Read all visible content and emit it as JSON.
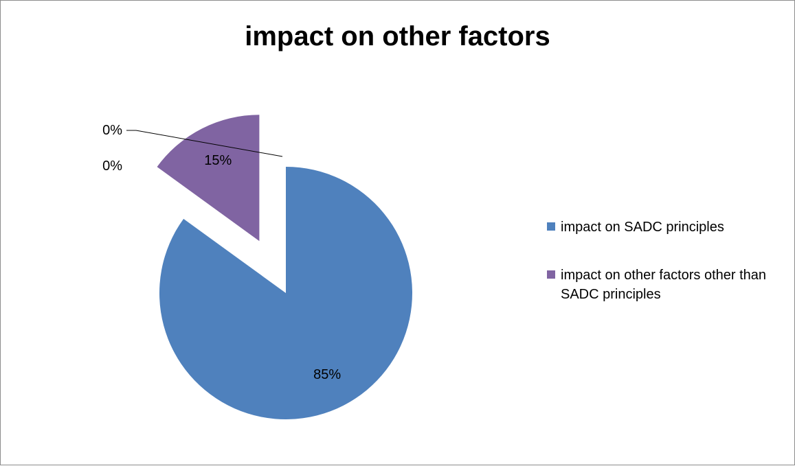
{
  "chart_data": {
    "type": "pie",
    "title": "impact on other factors",
    "slices": [
      {
        "name": "impact on SADC principles",
        "value": 85,
        "label": "85%",
        "color": "#4f81bd",
        "exploded": false
      },
      {
        "name": "impact on other factors other than SADC principles",
        "value": 15,
        "label": "15%",
        "color": "#8064a2",
        "exploded": true
      },
      {
        "name": "",
        "value": 0,
        "label": "0%",
        "color": "#9bbb59",
        "exploded": true
      },
      {
        "name": "",
        "value": 0,
        "label": "0%",
        "color": "#f79646",
        "exploded": true
      }
    ],
    "legend": {
      "placement": "right",
      "entries": [
        {
          "name": "impact on SADC principles",
          "color": "#4f81bd"
        },
        {
          "name": "impact on other factors other than SADC principles",
          "color": "#8064a2"
        }
      ]
    }
  }
}
